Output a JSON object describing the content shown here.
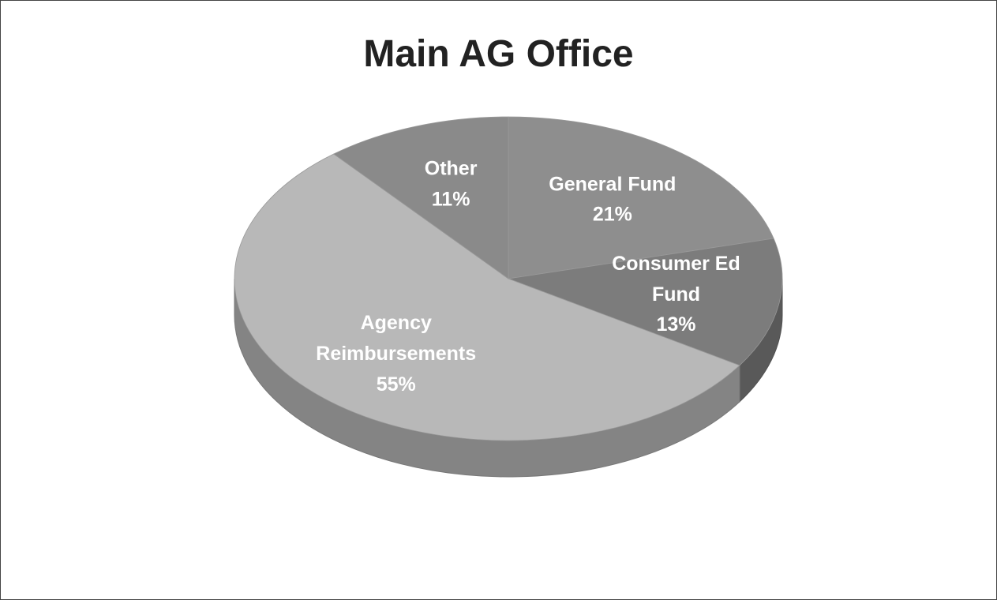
{
  "chart_data": {
    "type": "pie3d",
    "title": "Main AG Office",
    "categories": [
      "General Fund",
      "Consumer Ed Fund",
      "Agency Reimbursements",
      "Other"
    ],
    "values": [
      21,
      13,
      55,
      11
    ],
    "value_labels": [
      "21%",
      "13%",
      "55%",
      "11%"
    ],
    "colors": [
      "#8e8e8e",
      "#7c7c7c",
      "#b8b8b8",
      "#8a8a8a"
    ]
  }
}
